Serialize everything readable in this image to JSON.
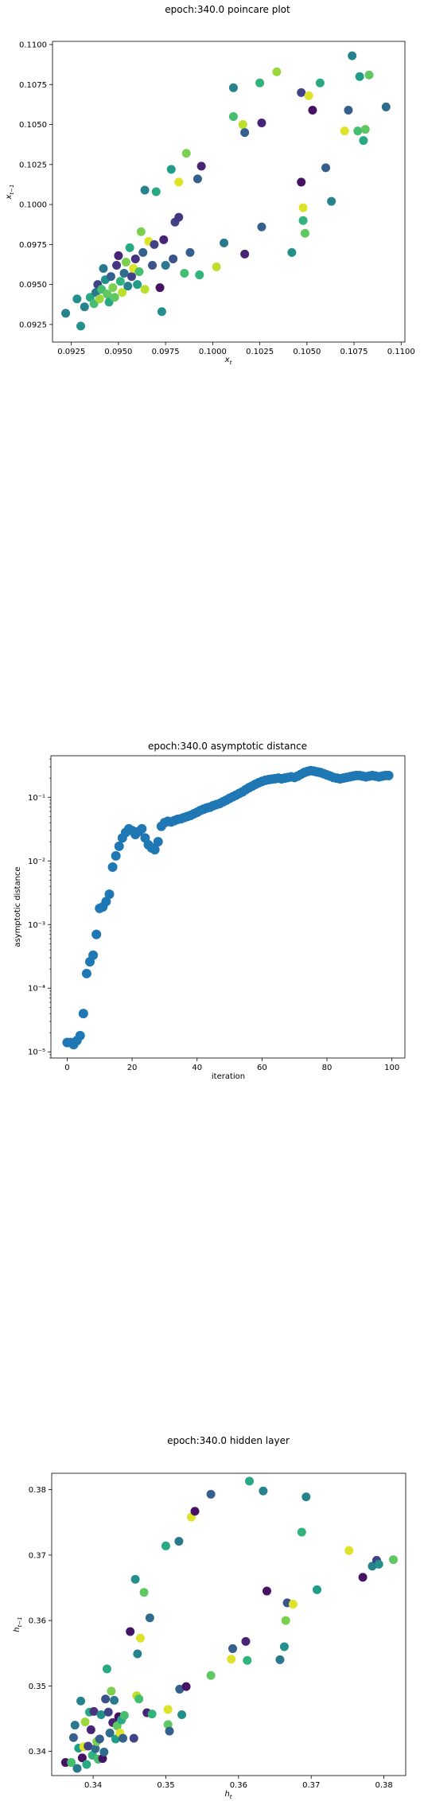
{
  "chart_data": [
    {
      "type": "scatter",
      "title": "epoch:340.0 poincare plot",
      "xlabel": "x_t",
      "ylabel": "x_{t-1}",
      "xlim": [
        0.0915,
        0.1102
      ],
      "ylim": [
        0.0914,
        0.1102
      ],
      "xticks": [
        0.0925,
        0.095,
        0.0975,
        0.1,
        0.1025,
        0.105,
        0.1075,
        0.11
      ],
      "xtick_labels": [
        "0.0925",
        "0.0950",
        "0.0975",
        "0.1000",
        "0.1025",
        "0.1050",
        "0.1075",
        "0.1100"
      ],
      "yticks": [
        0.0925,
        0.095,
        0.0975,
        0.1,
        0.1025,
        0.105,
        0.1075,
        0.11
      ],
      "ytick_labels": [
        "0.0925",
        "0.0950",
        "0.0975",
        "0.1000",
        "0.1025",
        "0.1050",
        "0.1075",
        "0.1100"
      ],
      "colormap": "viridis",
      "points": [
        {
          "x": 0.0922,
          "y": 0.0932,
          "c": 0.45
        },
        {
          "x": 0.0928,
          "y": 0.0941,
          "c": 0.5
        },
        {
          "x": 0.093,
          "y": 0.0924,
          "c": 0.5
        },
        {
          "x": 0.0932,
          "y": 0.0936,
          "c": 0.45
        },
        {
          "x": 0.0935,
          "y": 0.0942,
          "c": 0.6
        },
        {
          "x": 0.0937,
          "y": 0.0938,
          "c": 0.7
        },
        {
          "x": 0.0938,
          "y": 0.0945,
          "c": 0.4
        },
        {
          "x": 0.0939,
          "y": 0.095,
          "c": 0.2
        },
        {
          "x": 0.094,
          "y": 0.0941,
          "c": 0.85
        },
        {
          "x": 0.0941,
          "y": 0.0947,
          "c": 0.7
        },
        {
          "x": 0.0942,
          "y": 0.096,
          "c": 0.4
        },
        {
          "x": 0.0943,
          "y": 0.0953,
          "c": 0.5
        },
        {
          "x": 0.0944,
          "y": 0.0944,
          "c": 0.75
        },
        {
          "x": 0.0945,
          "y": 0.0939,
          "c": 0.6
        },
        {
          "x": 0.0946,
          "y": 0.0955,
          "c": 0.3
        },
        {
          "x": 0.0947,
          "y": 0.0948,
          "c": 0.8
        },
        {
          "x": 0.0948,
          "y": 0.0942,
          "c": 0.75
        },
        {
          "x": 0.0949,
          "y": 0.0962,
          "c": 0.15
        },
        {
          "x": 0.095,
          "y": 0.0968,
          "c": 0.1
        },
        {
          "x": 0.0951,
          "y": 0.0952,
          "c": 0.65
        },
        {
          "x": 0.0952,
          "y": 0.0945,
          "c": 0.9
        },
        {
          "x": 0.0953,
          "y": 0.0957,
          "c": 0.35
        },
        {
          "x": 0.0954,
          "y": 0.0964,
          "c": 0.8
        },
        {
          "x": 0.0955,
          "y": 0.0949,
          "c": 0.45
        },
        {
          "x": 0.0956,
          "y": 0.0973,
          "c": 0.6
        },
        {
          "x": 0.0957,
          "y": 0.0955,
          "c": 0.2
        },
        {
          "x": 0.0958,
          "y": 0.096,
          "c": 0.95
        },
        {
          "x": 0.0959,
          "y": 0.0966,
          "c": 0.15
        },
        {
          "x": 0.096,
          "y": 0.095,
          "c": 0.55
        },
        {
          "x": 0.0961,
          "y": 0.0958,
          "c": 0.7
        },
        {
          "x": 0.0962,
          "y": 0.0983,
          "c": 0.8
        },
        {
          "x": 0.0963,
          "y": 0.097,
          "c": 0.3
        },
        {
          "x": 0.0964,
          "y": 0.0947,
          "c": 0.9
        },
        {
          "x": 0.0964,
          "y": 0.1009,
          "c": 0.45
        },
        {
          "x": 0.0966,
          "y": 0.0977,
          "c": 0.95
        },
        {
          "x": 0.0968,
          "y": 0.0962,
          "c": 0.25
        },
        {
          "x": 0.0969,
          "y": 0.0975,
          "c": 0.2
        },
        {
          "x": 0.097,
          "y": 0.1008,
          "c": 0.6
        },
        {
          "x": 0.0972,
          "y": 0.0948,
          "c": 0.05
        },
        {
          "x": 0.0973,
          "y": 0.0933,
          "c": 0.5
        },
        {
          "x": 0.0974,
          "y": 0.0978,
          "c": 0.1
        },
        {
          "x": 0.0975,
          "y": 0.0962,
          "c": 0.4
        },
        {
          "x": 0.0978,
          "y": 0.1022,
          "c": 0.55
        },
        {
          "x": 0.0979,
          "y": 0.0966,
          "c": 0.25
        },
        {
          "x": 0.098,
          "y": 0.0989,
          "c": 0.2
        },
        {
          "x": 0.0982,
          "y": 0.1014,
          "c": 0.95
        },
        {
          "x": 0.0982,
          "y": 0.0992,
          "c": 0.15
        },
        {
          "x": 0.0985,
          "y": 0.0957,
          "c": 0.7
        },
        {
          "x": 0.0986,
          "y": 0.1032,
          "c": 0.8
        },
        {
          "x": 0.0988,
          "y": 0.097,
          "c": 0.3
        },
        {
          "x": 0.0992,
          "y": 0.1016,
          "c": 0.3
        },
        {
          "x": 0.0993,
          "y": 0.0956,
          "c": 0.65
        },
        {
          "x": 0.0994,
          "y": 0.1024,
          "c": 0.1
        },
        {
          "x": 0.1002,
          "y": 0.0961,
          "c": 0.9
        },
        {
          "x": 0.1006,
          "y": 0.0976,
          "c": 0.4
        },
        {
          "x": 0.1011,
          "y": 0.1055,
          "c": 0.7
        },
        {
          "x": 0.1011,
          "y": 0.1073,
          "c": 0.45
        },
        {
          "x": 0.1016,
          "y": 0.105,
          "c": 0.9
        },
        {
          "x": 0.1017,
          "y": 0.0969,
          "c": 0.1
        },
        {
          "x": 0.1017,
          "y": 0.1045,
          "c": 0.3
        },
        {
          "x": 0.1025,
          "y": 0.1076,
          "c": 0.65
        },
        {
          "x": 0.1026,
          "y": 0.1051,
          "c": 0.1
        },
        {
          "x": 0.1026,
          "y": 0.0986,
          "c": 0.3
        },
        {
          "x": 0.1034,
          "y": 0.1083,
          "c": 0.85
        },
        {
          "x": 0.1042,
          "y": 0.097,
          "c": 0.5
        },
        {
          "x": 0.1047,
          "y": 0.107,
          "c": 0.2
        },
        {
          "x": 0.1047,
          "y": 0.1014,
          "c": 0.05
        },
        {
          "x": 0.1048,
          "y": 0.0998,
          "c": 0.95
        },
        {
          "x": 0.1048,
          "y": 0.099,
          "c": 0.65
        },
        {
          "x": 0.1049,
          "y": 0.0982,
          "c": 0.75
        },
        {
          "x": 0.1051,
          "y": 0.1068,
          "c": 0.95
        },
        {
          "x": 0.1053,
          "y": 0.1059,
          "c": 0.05
        },
        {
          "x": 0.1057,
          "y": 0.1076,
          "c": 0.6
        },
        {
          "x": 0.106,
          "y": 0.1023,
          "c": 0.3
        },
        {
          "x": 0.1063,
          "y": 0.1002,
          "c": 0.45
        },
        {
          "x": 0.107,
          "y": 0.1046,
          "c": 0.95
        },
        {
          "x": 0.1072,
          "y": 0.1059,
          "c": 0.3
        },
        {
          "x": 0.1074,
          "y": 0.1093,
          "c": 0.45
        },
        {
          "x": 0.1077,
          "y": 0.1046,
          "c": 0.7
        },
        {
          "x": 0.1078,
          "y": 0.108,
          "c": 0.55
        },
        {
          "x": 0.108,
          "y": 0.104,
          "c": 0.6
        },
        {
          "x": 0.1081,
          "y": 0.1047,
          "c": 0.75
        },
        {
          "x": 0.1083,
          "y": 0.1081,
          "c": 0.75
        },
        {
          "x": 0.1092,
          "y": 0.1061,
          "c": 0.35
        }
      ]
    },
    {
      "type": "scatter",
      "title": "epoch:340.0 asymptotic distance",
      "xlabel": "iteration",
      "ylabel": "asymptotic distance",
      "xlim": [
        -5,
        104
      ],
      "yscale": "log",
      "ylim": [
        8e-06,
        0.45
      ],
      "xticks": [
        0,
        20,
        40,
        60,
        80,
        100
      ],
      "xtick_labels": [
        "0",
        "20",
        "40",
        "60",
        "80",
        "100"
      ],
      "yticks": [
        1e-05,
        0.0001,
        0.001,
        0.01,
        0.1
      ],
      "ytick_labels": [
        "10⁻⁵",
        "10⁻⁴",
        "10⁻³",
        "10⁻²",
        "10⁻¹"
      ],
      "color": "#1f77b4",
      "x": [
        0,
        1,
        2,
        3,
        4,
        5,
        6,
        7,
        8,
        9,
        10,
        11,
        12,
        13,
        14,
        15,
        16,
        17,
        18,
        19,
        20,
        21,
        22,
        23,
        24,
        25,
        26,
        27,
        28,
        29,
        30,
        31,
        32,
        33,
        34,
        35,
        36,
        37,
        38,
        39,
        40,
        41,
        42,
        43,
        44,
        45,
        46,
        47,
        48,
        49,
        50,
        51,
        52,
        53,
        54,
        55,
        56,
        57,
        58,
        59,
        60,
        61,
        62,
        63,
        64,
        65,
        66,
        67,
        68,
        69,
        70,
        71,
        72,
        73,
        74,
        75,
        76,
        77,
        78,
        79,
        80,
        81,
        82,
        83,
        84,
        85,
        86,
        87,
        88,
        89,
        90,
        91,
        92,
        93,
        94,
        95,
        96,
        97,
        98,
        99
      ],
      "y": [
        1.4e-05,
        1.4e-05,
        1.3e-05,
        1.5e-05,
        1.8e-05,
        4e-05,
        0.00017,
        0.00026,
        0.00033,
        0.0007,
        0.0018,
        0.0019,
        0.0023,
        0.003,
        0.008,
        0.012,
        0.017,
        0.023,
        0.028,
        0.032,
        0.03,
        0.026,
        0.029,
        0.032,
        0.023,
        0.018,
        0.016,
        0.015,
        0.02,
        0.035,
        0.04,
        0.042,
        0.041,
        0.043,
        0.045,
        0.046,
        0.048,
        0.05,
        0.052,
        0.055,
        0.058,
        0.062,
        0.065,
        0.068,
        0.07,
        0.074,
        0.077,
        0.08,
        0.085,
        0.09,
        0.096,
        0.102,
        0.108,
        0.115,
        0.122,
        0.132,
        0.142,
        0.15,
        0.16,
        0.17,
        0.178,
        0.185,
        0.19,
        0.193,
        0.196,
        0.2,
        0.195,
        0.2,
        0.205,
        0.21,
        0.205,
        0.215,
        0.23,
        0.245,
        0.255,
        0.262,
        0.258,
        0.25,
        0.245,
        0.235,
        0.225,
        0.215,
        0.205,
        0.2,
        0.195,
        0.2,
        0.205,
        0.21,
        0.215,
        0.22,
        0.22,
        0.215,
        0.21,
        0.215,
        0.22,
        0.215,
        0.21,
        0.215,
        0.22,
        0.22
      ]
    },
    {
      "type": "scatter",
      "title": "epoch:340.0 hidden layer",
      "xlabel": "h_t",
      "ylabel": "h_{t-1}",
      "xlim": [
        0.3343,
        0.383
      ],
      "ylim": [
        0.3363,
        0.3825
      ],
      "xticks": [
        0.34,
        0.35,
        0.36,
        0.37,
        0.38
      ],
      "xtick_labels": [
        "0.34",
        "0.35",
        "0.36",
        "0.37",
        "0.38"
      ],
      "yticks": [
        0.34,
        0.35,
        0.36,
        0.37,
        0.38
      ],
      "ytick_labels": [
        "0.34",
        "0.35",
        "0.36",
        "0.37",
        "0.38"
      ],
      "colormap": "viridis",
      "points": [
        {
          "x": 0.3362,
          "y": 0.3383,
          "c": 0.05
        },
        {
          "x": 0.337,
          "y": 0.3383,
          "c": 0.7
        },
        {
          "x": 0.3373,
          "y": 0.3421,
          "c": 0.3
        },
        {
          "x": 0.3375,
          "y": 0.344,
          "c": 0.4
        },
        {
          "x": 0.3378,
          "y": 0.3374,
          "c": 0.4
        },
        {
          "x": 0.338,
          "y": 0.3405,
          "c": 0.55
        },
        {
          "x": 0.3383,
          "y": 0.3477,
          "c": 0.45
        },
        {
          "x": 0.3385,
          "y": 0.339,
          "c": 0.05
        },
        {
          "x": 0.3387,
          "y": 0.3407,
          "c": 0.95
        },
        {
          "x": 0.3389,
          "y": 0.3445,
          "c": 0.85
        },
        {
          "x": 0.3391,
          "y": 0.338,
          "c": 0.6
        },
        {
          "x": 0.3393,
          "y": 0.3408,
          "c": 0.2
        },
        {
          "x": 0.3395,
          "y": 0.346,
          "c": 0.6
        },
        {
          "x": 0.3397,
          "y": 0.3433,
          "c": 0.1
        },
        {
          "x": 0.3399,
          "y": 0.3394,
          "c": 0.65
        },
        {
          "x": 0.3401,
          "y": 0.3461,
          "c": 0.15
        },
        {
          "x": 0.3403,
          "y": 0.3404,
          "c": 0.35
        },
        {
          "x": 0.3405,
          "y": 0.3415,
          "c": 0.8
        },
        {
          "x": 0.3407,
          "y": 0.3388,
          "c": 0.7
        },
        {
          "x": 0.3409,
          "y": 0.3419,
          "c": 0.3
        },
        {
          "x": 0.3411,
          "y": 0.3456,
          "c": 0.5
        },
        {
          "x": 0.3413,
          "y": 0.3389,
          "c": 0.05
        },
        {
          "x": 0.3415,
          "y": 0.3399,
          "c": 0.35
        },
        {
          "x": 0.3417,
          "y": 0.348,
          "c": 0.25
        },
        {
          "x": 0.3419,
          "y": 0.3526,
          "c": 0.6
        },
        {
          "x": 0.3421,
          "y": 0.346,
          "c": 0.2
        },
        {
          "x": 0.3423,
          "y": 0.3428,
          "c": 0.35
        },
        {
          "x": 0.3425,
          "y": 0.3492,
          "c": 0.8
        },
        {
          "x": 0.3427,
          "y": 0.3444,
          "c": 0.1
        },
        {
          "x": 0.3429,
          "y": 0.3478,
          "c": 0.4
        },
        {
          "x": 0.3431,
          "y": 0.3419,
          "c": 0.55
        },
        {
          "x": 0.3433,
          "y": 0.3439,
          "c": 0.75
        },
        {
          "x": 0.3435,
          "y": 0.3453,
          "c": 0.05
        },
        {
          "x": 0.3437,
          "y": 0.3428,
          "c": 0.95
        },
        {
          "x": 0.3439,
          "y": 0.3448,
          "c": 0.6
        },
        {
          "x": 0.3441,
          "y": 0.342,
          "c": 0.3
        },
        {
          "x": 0.3443,
          "y": 0.3455,
          "c": 0.7
        },
        {
          "x": 0.3451,
          "y": 0.3583,
          "c": 0.05
        },
        {
          "x": 0.3456,
          "y": 0.342,
          "c": 0.2
        },
        {
          "x": 0.3458,
          "y": 0.3663,
          "c": 0.5
        },
        {
          "x": 0.346,
          "y": 0.3485,
          "c": 0.9
        },
        {
          "x": 0.3461,
          "y": 0.3549,
          "c": 0.45
        },
        {
          "x": 0.3463,
          "y": 0.348,
          "c": 0.7
        },
        {
          "x": 0.3465,
          "y": 0.3573,
          "c": 0.95
        },
        {
          "x": 0.347,
          "y": 0.3643,
          "c": 0.75
        },
        {
          "x": 0.3474,
          "y": 0.3459,
          "c": 0.1
        },
        {
          "x": 0.3478,
          "y": 0.3604,
          "c": 0.35
        },
        {
          "x": 0.3481,
          "y": 0.3457,
          "c": 0.65
        },
        {
          "x": 0.35,
          "y": 0.3714,
          "c": 0.6
        },
        {
          "x": 0.3503,
          "y": 0.3464,
          "c": 0.95
        },
        {
          "x": 0.3503,
          "y": 0.3441,
          "c": 0.75
        },
        {
          "x": 0.3505,
          "y": 0.3431,
          "c": 0.3
        },
        {
          "x": 0.3518,
          "y": 0.3721,
          "c": 0.4
        },
        {
          "x": 0.3519,
          "y": 0.3495,
          "c": 0.3
        },
        {
          "x": 0.3522,
          "y": 0.3456,
          "c": 0.5
        },
        {
          "x": 0.3528,
          "y": 0.3499,
          "c": 0.05
        },
        {
          "x": 0.3535,
          "y": 0.3758,
          "c": 0.95
        },
        {
          "x": 0.354,
          "y": 0.3767,
          "c": 0.05
        },
        {
          "x": 0.3562,
          "y": 0.3793,
          "c": 0.3
        },
        {
          "x": 0.3562,
          "y": 0.3516,
          "c": 0.75
        },
        {
          "x": 0.359,
          "y": 0.3541,
          "c": 0.95
        },
        {
          "x": 0.3592,
          "y": 0.3557,
          "c": 0.3
        },
        {
          "x": 0.361,
          "y": 0.3568,
          "c": 0.1
        },
        {
          "x": 0.3612,
          "y": 0.3539,
          "c": 0.65
        },
        {
          "x": 0.3615,
          "y": 0.3813,
          "c": 0.6
        },
        {
          "x": 0.3634,
          "y": 0.3798,
          "c": 0.45
        },
        {
          "x": 0.3639,
          "y": 0.3645,
          "c": 0.05
        },
        {
          "x": 0.3657,
          "y": 0.354,
          "c": 0.4
        },
        {
          "x": 0.3663,
          "y": 0.356,
          "c": 0.5
        },
        {
          "x": 0.3665,
          "y": 0.36,
          "c": 0.8
        },
        {
          "x": 0.3667,
          "y": 0.3627,
          "c": 0.25
        },
        {
          "x": 0.3675,
          "y": 0.3625,
          "c": 0.95
        },
        {
          "x": 0.3687,
          "y": 0.3735,
          "c": 0.65
        },
        {
          "x": 0.3693,
          "y": 0.3789,
          "c": 0.45
        },
        {
          "x": 0.3708,
          "y": 0.3647,
          "c": 0.55
        },
        {
          "x": 0.3752,
          "y": 0.3707,
          "c": 0.95
        },
        {
          "x": 0.3771,
          "y": 0.3666,
          "c": 0.05
        },
        {
          "x": 0.3784,
          "y": 0.3683,
          "c": 0.45
        },
        {
          "x": 0.379,
          "y": 0.3692,
          "c": 0.2
        },
        {
          "x": 0.3793,
          "y": 0.3686,
          "c": 0.5
        },
        {
          "x": 0.3813,
          "y": 0.3693,
          "c": 0.75
        }
      ]
    }
  ]
}
